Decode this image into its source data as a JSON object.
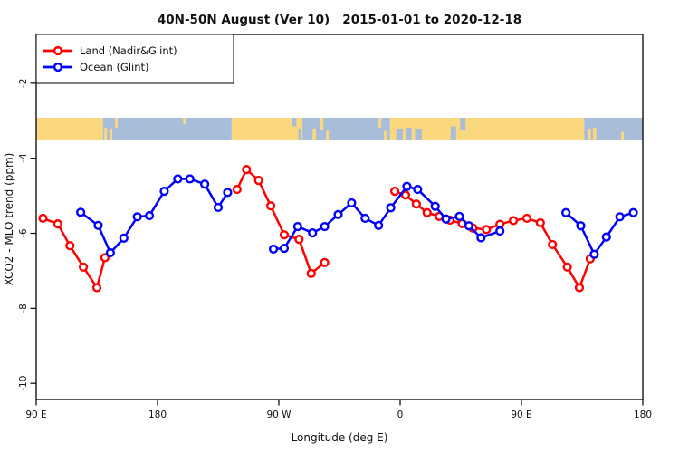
{
  "chart_data": {
    "type": "line",
    "title": "40N-50N August (Ver 10)   2015-01-01 to 2020-12-18",
    "xlabel": "Longitude (deg E)",
    "ylabel": "XCO2 - MLO trend (ppm)",
    "xlim": [
      90,
      540
    ],
    "ylim": [
      -10.43,
      -0.7
    ],
    "grid": "off",
    "x_ticks": [
      {
        "lon": 90,
        "label": "90 E"
      },
      {
        "lon": 180,
        "label": "180"
      },
      {
        "lon": 270,
        "label": "90 W"
      },
      {
        "lon": 360,
        "label": "0"
      },
      {
        "lon": 450,
        "label": "90 E"
      },
      {
        "lon": 540,
        "label": "180"
      }
    ],
    "y_ticks": [
      {
        "v": -2,
        "label": "-2"
      },
      {
        "v": -4,
        "label": "-4"
      },
      {
        "v": -6,
        "label": "-6"
      },
      {
        "v": -8,
        "label": "-8"
      },
      {
        "v": -10,
        "label": "-10"
      }
    ],
    "legend": {
      "position": "top-left",
      "entries": [
        {
          "label": "Land (Nadir&Glint)",
          "color": "#ff0000"
        },
        {
          "label": "Ocean (Glint)",
          "color": "#0000ff"
        }
      ]
    },
    "series": [
      {
        "name": "Land (Nadir&Glint)",
        "color": "#ff0000",
        "marker": "open-circle",
        "segments": [
          [
            [
              95,
              -5.6
            ],
            [
              106,
              -5.75
            ],
            [
              115,
              -6.33
            ],
            [
              125,
              -6.9
            ],
            [
              135,
              -7.45
            ],
            [
              141,
              -6.65
            ]
          ],
          [
            [
              239,
              -4.83
            ],
            [
              246,
              -4.3
            ],
            [
              255,
              -4.59
            ],
            [
              264,
              -5.27
            ],
            [
              274,
              -6.04
            ],
            [
              285,
              -6.16
            ],
            [
              294,
              -7.07
            ],
            [
              304,
              -6.78
            ]
          ],
          [
            [
              356,
              -4.88
            ],
            [
              364,
              -4.98
            ],
            [
              372,
              -5.22
            ],
            [
              380,
              -5.45
            ],
            [
              389,
              -5.55
            ],
            [
              397,
              -5.65
            ],
            [
              406,
              -5.74
            ],
            [
              414,
              -5.86
            ],
            [
              424,
              -5.9
            ],
            [
              434,
              -5.76
            ],
            [
              444,
              -5.66
            ],
            [
              454,
              -5.6
            ],
            [
              464,
              -5.72
            ],
            [
              473,
              -6.3
            ],
            [
              484,
              -6.9
            ],
            [
              493,
              -7.45
            ],
            [
              501,
              -6.68
            ]
          ]
        ]
      },
      {
        "name": "Ocean (Glint)",
        "color": "#0000ff",
        "marker": "open-circle",
        "segments": [
          [
            [
              123,
              -5.44
            ],
            [
              136,
              -5.79
            ],
            [
              145,
              -6.52
            ],
            [
              155,
              -6.13
            ],
            [
              165,
              -5.56
            ],
            [
              174,
              -5.53
            ],
            [
              185,
              -4.88
            ],
            [
              195,
              -4.55
            ],
            [
              204,
              -4.55
            ],
            [
              215,
              -4.69
            ],
            [
              225,
              -5.31
            ],
            [
              232,
              -4.91
            ]
          ],
          [
            [
              266,
              -6.42
            ],
            [
              274,
              -6.4
            ],
            [
              284,
              -5.82
            ],
            [
              295,
              -5.99
            ],
            [
              304,
              -5.82
            ],
            [
              314,
              -5.5
            ],
            [
              324,
              -5.19
            ],
            [
              334,
              -5.6
            ],
            [
              344,
              -5.79
            ],
            [
              353,
              -5.32
            ],
            [
              365,
              -4.75
            ],
            [
              373,
              -4.83
            ],
            [
              386,
              -5.28
            ],
            [
              394,
              -5.62
            ],
            [
              404,
              -5.55
            ],
            [
              411,
              -5.8
            ],
            [
              420,
              -6.12
            ],
            [
              434,
              -5.94
            ]
          ],
          [
            [
              483,
              -5.45
            ],
            [
              494,
              -5.8
            ],
            [
              504,
              -6.56
            ],
            [
              513,
              -6.1
            ],
            [
              523,
              -5.56
            ],
            [
              533,
              -5.45
            ]
          ]
        ]
      }
    ],
    "map_band": {
      "description": "world land/ocean strip for 40N-50N latitude band",
      "v_top": -2.92,
      "v_bottom": -3.5,
      "colors": {
        "land": "#fbd87e",
        "ocean": "#a8bdda"
      },
      "base_segments": [
        {
          "from": 90,
          "to": 139.5,
          "type": "land"
        },
        {
          "from": 139.5,
          "to": 235,
          "type": "ocean"
        },
        {
          "from": 235,
          "to": 287.5,
          "type": "land"
        },
        {
          "from": 287.5,
          "to": 352.5,
          "type": "ocean"
        },
        {
          "from": 352.5,
          "to": 496.5,
          "type": "land"
        },
        {
          "from": 496.5,
          "to": 540,
          "type": "ocean"
        }
      ],
      "detail_patches": [
        {
          "from": 140.5,
          "to": 142.5,
          "type": "land",
          "h": 0.55,
          "anchor": "bottom"
        },
        {
          "from": 144.5,
          "to": 146.5,
          "type": "land",
          "h": 0.5,
          "anchor": "bottom"
        },
        {
          "from": 148.5,
          "to": 150.5,
          "type": "land",
          "h": 0.45,
          "anchor": "top"
        },
        {
          "from": 199,
          "to": 201,
          "type": "land",
          "h": 0.3,
          "anchor": "top"
        },
        {
          "from": 280,
          "to": 283,
          "type": "ocean",
          "h": 0.4,
          "anchor": "top"
        },
        {
          "from": 284.5,
          "to": 286.5,
          "type": "ocean",
          "h": 0.5,
          "anchor": "bottom"
        },
        {
          "from": 295,
          "to": 297.5,
          "type": "land",
          "h": 0.5,
          "anchor": "bottom"
        },
        {
          "from": 300.5,
          "to": 303,
          "type": "land",
          "h": 0.55,
          "anchor": "top"
        },
        {
          "from": 305,
          "to": 307,
          "type": "land",
          "h": 0.4,
          "anchor": "bottom"
        },
        {
          "from": 344,
          "to": 346,
          "type": "land",
          "h": 0.45,
          "anchor": "top"
        },
        {
          "from": 348,
          "to": 350,
          "type": "land",
          "h": 0.4,
          "anchor": "bottom"
        },
        {
          "from": 357,
          "to": 362,
          "type": "ocean",
          "h": 0.5,
          "anchor": "bottom"
        },
        {
          "from": 364.5,
          "to": 368.5,
          "type": "ocean",
          "h": 0.55,
          "anchor": "bottom"
        },
        {
          "from": 371,
          "to": 376,
          "type": "ocean",
          "h": 0.5,
          "anchor": "bottom"
        },
        {
          "from": 397.5,
          "to": 401.5,
          "type": "ocean",
          "h": 0.6,
          "anchor": "bottom"
        },
        {
          "from": 404.5,
          "to": 408.5,
          "type": "ocean",
          "h": 0.55,
          "anchor": "top"
        },
        {
          "from": 499,
          "to": 501.5,
          "type": "land",
          "h": 0.5,
          "anchor": "bottom"
        },
        {
          "from": 503,
          "to": 505.5,
          "type": "land",
          "h": 0.55,
          "anchor": "bottom"
        },
        {
          "from": 524,
          "to": 526,
          "type": "land",
          "h": 0.35,
          "anchor": "bottom"
        }
      ]
    },
    "style": {
      "line_width": 2.5,
      "marker_radius": 3.9,
      "box_color": "#000000",
      "background": "#ffffff"
    }
  }
}
